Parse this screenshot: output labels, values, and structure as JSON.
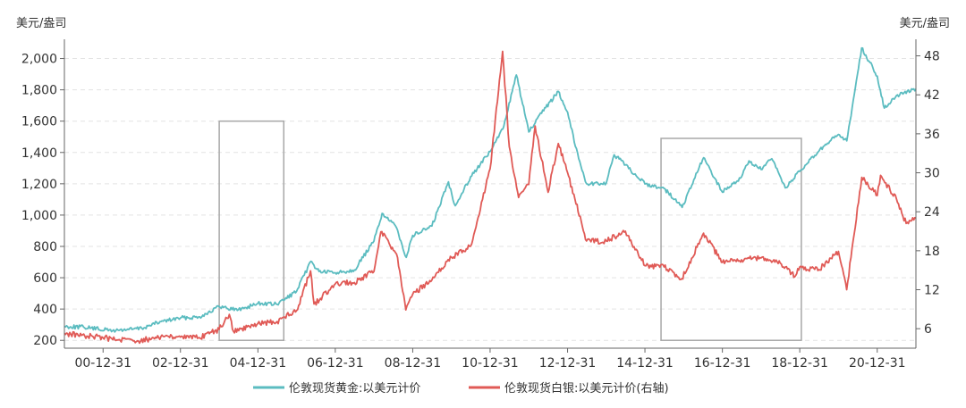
{
  "chart_data": {
    "type": "line",
    "left_axis": {
      "unit_label": "美元/盎司",
      "range": [
        150,
        2100
      ],
      "ticks": [
        200,
        400,
        600,
        800,
        1000,
        1200,
        1400,
        1600,
        1800,
        2000
      ],
      "tick_labels": [
        "200",
        "400",
        "600",
        "800",
        "1,000",
        "1,200",
        "1,400",
        "1,600",
        "1,800",
        "2,000"
      ]
    },
    "right_axis": {
      "unit_label": "美元/盎司",
      "range": [
        3,
        50
      ],
      "ticks": [
        6,
        12,
        18,
        24,
        30,
        36,
        42,
        48
      ],
      "tick_labels": [
        "6",
        "12",
        "18",
        "24",
        "30",
        "36",
        "42",
        "48"
      ]
    },
    "x_axis": {
      "range": [
        "2000-01-01",
        "2021-12-31"
      ],
      "ticks": [
        "2000-12-31",
        "2002-12-31",
        "2004-12-31",
        "2006-12-31",
        "2008-12-31",
        "2010-12-31",
        "2012-12-31",
        "2014-12-31",
        "2016-12-31",
        "2018-12-31",
        "2020-12-31"
      ],
      "tick_labels": [
        "00-12-31",
        "02-12-31",
        "04-12-31",
        "06-12-31",
        "08-12-31",
        "10-12-31",
        "12-12-31",
        "14-12-31",
        "16-12-31",
        "18-12-31",
        "20-12-31"
      ]
    },
    "grid": "horizontal-dashed",
    "legend_position": "bottom-center",
    "series": [
      {
        "name": "伦敦现货黄金:以美元计价",
        "axis": "left",
        "color": "#5bbcc0",
        "points": [
          [
            "2000-01-01",
            289
          ],
          [
            "2000-06-30",
            285
          ],
          [
            "2001-03-31",
            262
          ],
          [
            "2001-12-31",
            277
          ],
          [
            "2002-06-30",
            320
          ],
          [
            "2002-12-31",
            343
          ],
          [
            "2003-06-30",
            350
          ],
          [
            "2003-12-31",
            415
          ],
          [
            "2004-06-30",
            395
          ],
          [
            "2004-12-31",
            436
          ],
          [
            "2005-06-30",
            430
          ],
          [
            "2005-12-31",
            513
          ],
          [
            "2006-05-15",
            705
          ],
          [
            "2006-07-31",
            640
          ],
          [
            "2006-12-31",
            632
          ],
          [
            "2007-06-30",
            650
          ],
          [
            "2007-12-31",
            834
          ],
          [
            "2008-03-17",
            1011
          ],
          [
            "2008-07-31",
            920
          ],
          [
            "2008-10-31",
            730
          ],
          [
            "2008-12-31",
            870
          ],
          [
            "2009-06-30",
            930
          ],
          [
            "2009-12-03",
            1212
          ],
          [
            "2010-02-05",
            1060
          ],
          [
            "2010-06-30",
            1245
          ],
          [
            "2010-12-31",
            1405
          ],
          [
            "2011-04-30",
            1550
          ],
          [
            "2011-09-05",
            1895
          ],
          [
            "2011-12-31",
            1531
          ],
          [
            "2012-04-30",
            1650
          ],
          [
            "2012-10-05",
            1790
          ],
          [
            "2012-12-31",
            1657
          ],
          [
            "2013-04-15",
            1360
          ],
          [
            "2013-06-28",
            1200
          ],
          [
            "2013-12-31",
            1204
          ],
          [
            "2014-03-15",
            1385
          ],
          [
            "2014-06-30",
            1320
          ],
          [
            "2014-12-31",
            1199
          ],
          [
            "2015-06-30",
            1170
          ],
          [
            "2015-12-17",
            1049
          ],
          [
            "2016-07-06",
            1366
          ],
          [
            "2016-12-31",
            1146
          ],
          [
            "2017-06-30",
            1245
          ],
          [
            "2017-09-08",
            1346
          ],
          [
            "2017-12-31",
            1291
          ],
          [
            "2018-04-11",
            1360
          ],
          [
            "2018-08-16",
            1174
          ],
          [
            "2018-12-31",
            1279
          ],
          [
            "2019-06-30",
            1409
          ],
          [
            "2019-12-31",
            1515
          ],
          [
            "2020-03-19",
            1474
          ],
          [
            "2020-08-06",
            2067
          ],
          [
            "2020-12-31",
            1888
          ],
          [
            "2021-03-08",
            1683
          ],
          [
            "2021-06-30",
            1763
          ],
          [
            "2021-12-31",
            1806
          ]
        ]
      },
      {
        "name": "伦敦现货白银:以美元计价(右轴)",
        "axis": "right",
        "color": "#e05a56",
        "points": [
          [
            "2000-01-01",
            5.3
          ],
          [
            "2000-12-31",
            4.6
          ],
          [
            "2001-11-30",
            4.1
          ],
          [
            "2002-06-30",
            4.8
          ],
          [
            "2002-12-31",
            4.7
          ],
          [
            "2003-06-30",
            4.6
          ],
          [
            "2003-12-31",
            5.9
          ],
          [
            "2004-04-05",
            8.2
          ],
          [
            "2004-05-14",
            5.6
          ],
          [
            "2004-12-31",
            6.8
          ],
          [
            "2005-06-30",
            7.1
          ],
          [
            "2005-12-31",
            8.8
          ],
          [
            "2006-05-12",
            14.9
          ],
          [
            "2006-06-14",
            9.8
          ],
          [
            "2006-12-31",
            12.9
          ],
          [
            "2007-06-30",
            13.1
          ],
          [
            "2007-12-31",
            14.8
          ],
          [
            "2008-03-05",
            20.9
          ],
          [
            "2008-07-31",
            17.5
          ],
          [
            "2008-10-27",
            8.9
          ],
          [
            "2008-12-31",
            11.3
          ],
          [
            "2009-06-30",
            13.5
          ],
          [
            "2009-12-31",
            17.0
          ],
          [
            "2010-06-30",
            18.7
          ],
          [
            "2010-12-31",
            30.6
          ],
          [
            "2011-04-28",
            48.7
          ],
          [
            "2011-06-30",
            34.0
          ],
          [
            "2011-09-26",
            26.2
          ],
          [
            "2011-12-31",
            28.2
          ],
          [
            "2012-02-29",
            37.2
          ],
          [
            "2012-06-30",
            27.0
          ],
          [
            "2012-10-05",
            34.5
          ],
          [
            "2012-12-31",
            30.0
          ],
          [
            "2013-06-28",
            19.5
          ],
          [
            "2013-12-31",
            19.5
          ],
          [
            "2014-06-30",
            21.0
          ],
          [
            "2014-12-31",
            15.7
          ],
          [
            "2015-06-30",
            15.5
          ],
          [
            "2015-12-14",
            13.7
          ],
          [
            "2016-07-06",
            20.7
          ],
          [
            "2016-12-31",
            16.2
          ],
          [
            "2017-06-30",
            16.6
          ],
          [
            "2017-12-31",
            16.9
          ],
          [
            "2018-06-30",
            16.1
          ],
          [
            "2018-11-14",
            14.0
          ],
          [
            "2018-12-31",
            15.5
          ],
          [
            "2019-06-30",
            15.1
          ],
          [
            "2019-12-31",
            17.9
          ],
          [
            "2020-03-18",
            12.0
          ],
          [
            "2020-08-07",
            29.3
          ],
          [
            "2020-12-31",
            26.5
          ],
          [
            "2021-02-01",
            29.6
          ],
          [
            "2021-06-30",
            26.0
          ],
          [
            "2021-09-30",
            22.2
          ],
          [
            "2021-12-31",
            23.0
          ]
        ]
      }
    ],
    "annotations": [
      {
        "type": "rect-outline",
        "x_from": "2004-01-01",
        "x_to": "2005-09-01",
        "y_from": 200,
        "y_to": 1600,
        "y_axis": "left"
      },
      {
        "type": "rect-outline",
        "x_from": "2015-06-01",
        "x_to": "2019-01-15",
        "y_from": 200,
        "y_to": 1490,
        "y_axis": "left"
      }
    ]
  }
}
